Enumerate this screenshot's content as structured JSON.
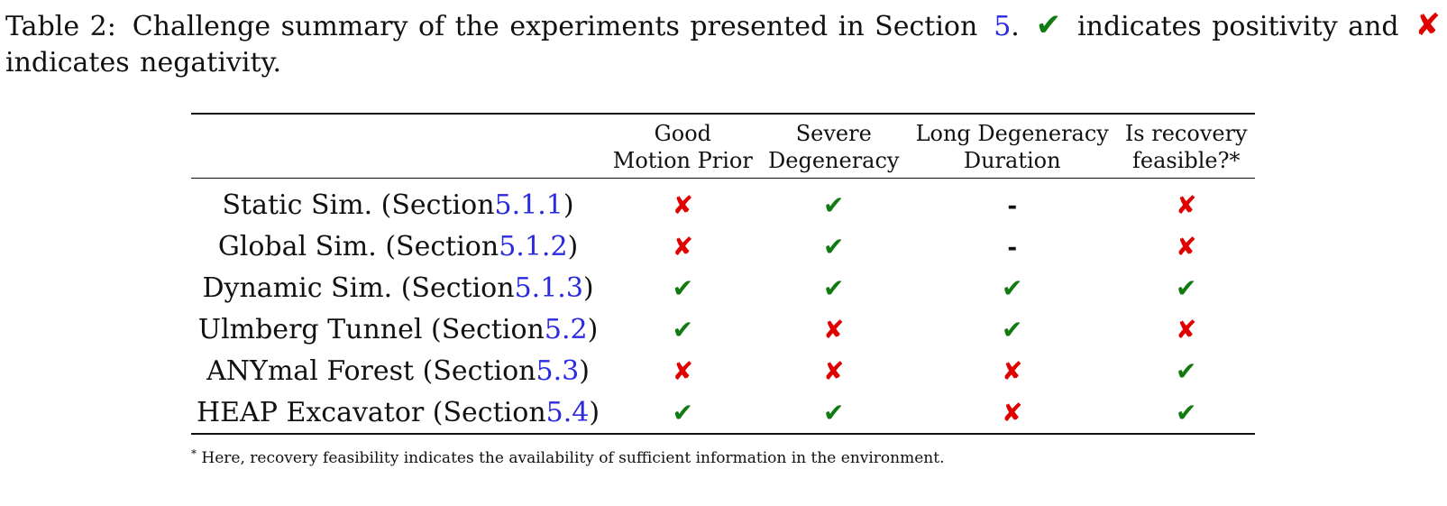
{
  "caption": {
    "label": "Table 2:",
    "text_before": "Challenge summary of the experiments presented in Section",
    "section_ref": "5",
    "text_after_ref": ".",
    "positive_symbol": "✔",
    "positive_text": "indicates positivity and",
    "negative_symbol": "✘",
    "negative_text": "indicates negativity."
  },
  "colors": {
    "check": "#117a11",
    "cross": "#e00000",
    "link": "#2a2ae0"
  },
  "table": {
    "headers": [
      {
        "line1": "Good",
        "line2": "Motion Prior"
      },
      {
        "line1": "Severe",
        "line2": "Degeneracy"
      },
      {
        "line1": "Long Degeneracy",
        "line2": "Duration"
      },
      {
        "line1": "Is recovery",
        "line2": "feasible?*"
      }
    ],
    "rows": [
      {
        "name": "Static Sim.",
        "section_prefix": "(Section",
        "section": "5.1.1",
        "section_suffix": ")",
        "cells": [
          "✘",
          "✔",
          "-",
          "✘"
        ]
      },
      {
        "name": "Global Sim.",
        "section_prefix": "(Section",
        "section": "5.1.2",
        "section_suffix": ")",
        "cells": [
          "✘",
          "✔",
          "-",
          "✘"
        ]
      },
      {
        "name": "Dynamic Sim.",
        "section_prefix": "(Section",
        "section": "5.1.3",
        "section_suffix": ")",
        "cells": [
          "✔",
          "✔",
          "✔",
          "✔"
        ]
      },
      {
        "name": "Ulmberg Tunnel",
        "section_prefix": "(Section",
        "section": "5.2",
        "section_suffix": ")",
        "cells": [
          "✔",
          "✘",
          "✔",
          "✘"
        ]
      },
      {
        "name": "ANYmal Forest",
        "section_prefix": "(Section",
        "section": "5.3",
        "section_suffix": ")",
        "cells": [
          "✘",
          "✘",
          "✘",
          "✔"
        ]
      },
      {
        "name": "HEAP Excavator",
        "section_prefix": "(Section",
        "section": "5.4",
        "section_suffix": ")",
        "cells": [
          "✔",
          "✔",
          "✘",
          "✔"
        ]
      }
    ]
  },
  "footnote": {
    "marker": "*",
    "text": "Here, recovery feasibility indicates the availability of sufficient information in the environment."
  }
}
